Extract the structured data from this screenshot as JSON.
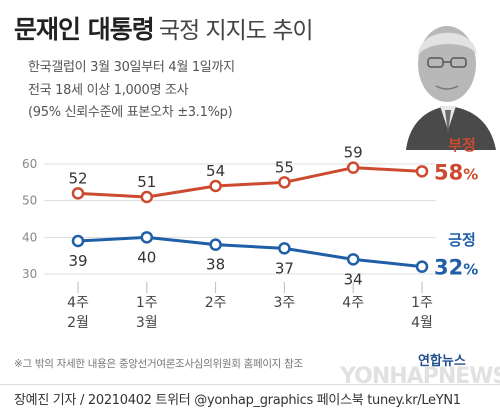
{
  "header": {
    "title_bold": "문재인 대통령",
    "title_rest": "국정 지지도 추이",
    "subtitle_lines": [
      "한국갤럽이 3월 30일부터 4월 1일까지",
      "전국 18세 이상 1,000명 조사",
      "(95% 신뢰수준에 표본오차 ±3.1%p)"
    ]
  },
  "chart_data": {
    "type": "line",
    "categories": [
      [
        "4주",
        "2월"
      ],
      [
        "1주",
        "3월"
      ],
      [
        "2주",
        ""
      ],
      [
        "3주",
        ""
      ],
      [
        "4주",
        ""
      ],
      [
        "1주",
        "4월"
      ]
    ],
    "ylim": [
      30,
      60
    ],
    "yticks": [
      60,
      50,
      40,
      30
    ],
    "series": [
      {
        "name": "부정",
        "values": [
          52,
          51,
          54,
          55,
          59,
          58
        ],
        "color": "#cc4a2f",
        "latest_label": "58%"
      },
      {
        "name": "긍정",
        "values": [
          39,
          40,
          38,
          37,
          34,
          32
        ],
        "color": "#1f5fa8",
        "latest_label": "32%"
      }
    ],
    "grid": true,
    "legend": "right"
  },
  "footnote": "※그 밖의 자세한 내용은 중앙선거여론조사심의위원회 홈페이지 참조",
  "brand": {
    "logo_text": "연합뉴스",
    "watermark": "YONHAPNEWS"
  },
  "credit": "장예진 기자 / 20210402 트위터 @yonhap_graphics  페이스북 tuney.kr/LeYN1"
}
